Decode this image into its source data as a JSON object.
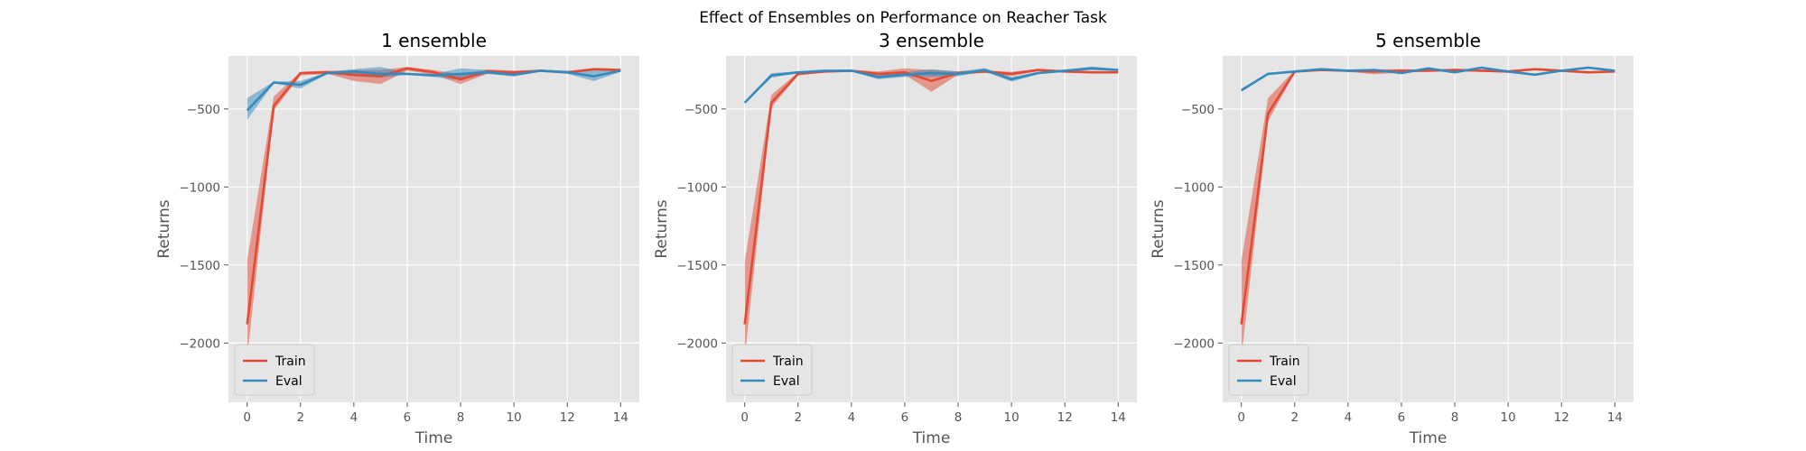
{
  "chart_data": {
    "type": "line",
    "title": "Effect of Ensembles on Performance on Reacher Task",
    "style": {
      "background": "#E5E5E5",
      "grid": true,
      "grid_color": "#FFFFFF",
      "legend_loc": "lower left"
    },
    "colors": {
      "Train": "#E24A33",
      "Eval": "#348ABD"
    },
    "panels": [
      {
        "title": "1 ensemble",
        "xlabel": "Time",
        "ylabel": "Returns",
        "xlim": [
          -0.7,
          14.7
        ],
        "ylim": [
          -2380,
          -160
        ],
        "xticks": [
          0,
          2,
          4,
          6,
          8,
          10,
          12,
          14
        ],
        "yticks": [
          -500,
          -1000,
          -1500,
          -2000
        ],
        "x": [
          0,
          1,
          2,
          3,
          4,
          5,
          6,
          7,
          8,
          9,
          10,
          11,
          12,
          13,
          14
        ],
        "series": [
          {
            "name": "Train",
            "mean": [
              -1880,
              -480,
              -270,
              -265,
              -280,
              -290,
              -240,
              -265,
              -310,
              -260,
              -265,
              -255,
              -265,
              -245,
              -250
            ],
            "lower": [
              -2100,
              -510,
              -285,
              -275,
              -320,
              -340,
              -255,
              -280,
              -340,
              -275,
              -275,
              -262,
              -272,
              -255,
              -258
            ],
            "upper": [
              -1470,
              -420,
              -262,
              -255,
              -250,
              -250,
              -230,
              -250,
              -280,
              -245,
              -255,
              -248,
              -258,
              -238,
              -242
            ]
          },
          {
            "name": "Eval",
            "mean": [
              -510,
              -330,
              -345,
              -270,
              -260,
              -275,
              -275,
              -285,
              -275,
              -265,
              -280,
              -255,
              -265,
              -290,
              -255
            ],
            "lower": [
              -570,
              -335,
              -370,
              -275,
              -290,
              -300,
              -280,
              -295,
              -315,
              -275,
              -292,
              -262,
              -275,
              -320,
              -262
            ],
            "upper": [
              -430,
              -325,
              -320,
              -265,
              -245,
              -230,
              -270,
              -275,
              -240,
              -250,
              -265,
              -248,
              -255,
              -255,
              -248
            ]
          }
        ]
      },
      {
        "title": "3 ensemble",
        "xlabel": "Time",
        "ylabel": "Returns",
        "xlim": [
          -0.7,
          14.7
        ],
        "ylim": [
          -2380,
          -160
        ],
        "xticks": [
          0,
          2,
          4,
          6,
          8,
          10,
          12,
          14
        ],
        "yticks": [
          -500,
          -1000,
          -1500,
          -2000
        ],
        "x": [
          0,
          1,
          2,
          3,
          4,
          5,
          6,
          7,
          8,
          9,
          10,
          11,
          12,
          13,
          14
        ],
        "series": [
          {
            "name": "Train",
            "mean": [
              -1880,
              -460,
              -275,
              -260,
              -255,
              -275,
              -265,
              -320,
              -270,
              -260,
              -275,
              -250,
              -260,
              -265,
              -265
            ],
            "lower": [
              -2100,
              -490,
              -285,
              -266,
              -262,
              -285,
              -280,
              -390,
              -280,
              -268,
              -290,
              -258,
              -266,
              -272,
              -272
            ],
            "upper": [
              -1480,
              -410,
              -265,
              -254,
              -248,
              -260,
              -240,
              -250,
              -258,
              -252,
              -262,
              -242,
              -254,
              -258,
              -258
            ]
          },
          {
            "name": "Eval",
            "mean": [
              -460,
              -285,
              -265,
              -255,
              -255,
              -295,
              -280,
              -270,
              -275,
              -250,
              -310,
              -270,
              -255,
              -240,
              -250
            ],
            "lower": [
              -462,
              -300,
              -270,
              -260,
              -260,
              -310,
              -295,
              -295,
              -290,
              -260,
              -325,
              -278,
              -262,
              -250,
              -256
            ],
            "upper": [
              -458,
              -270,
              -260,
              -250,
              -250,
              -280,
              -265,
              -245,
              -260,
              -238,
              -295,
              -262,
              -248,
              -228,
              -244
            ]
          }
        ]
      },
      {
        "title": "5 ensemble",
        "xlabel": "Time",
        "ylabel": "Returns",
        "xlim": [
          -0.7,
          14.7
        ],
        "ylim": [
          -2380,
          -160
        ],
        "xticks": [
          0,
          2,
          4,
          6,
          8,
          10,
          12,
          14
        ],
        "yticks": [
          -500,
          -1000,
          -1500,
          -2000
        ],
        "x": [
          0,
          1,
          2,
          3,
          4,
          5,
          6,
          7,
          8,
          9,
          10,
          11,
          12,
          13,
          14
        ],
        "series": [
          {
            "name": "Train",
            "mean": [
              -1880,
              -530,
              -260,
              -250,
              -255,
              -260,
              -255,
              -255,
              -250,
              -255,
              -260,
              -245,
              -255,
              -265,
              -260
            ],
            "lower": [
              -2100,
              -580,
              -268,
              -256,
              -262,
              -278,
              -265,
              -262,
              -258,
              -262,
              -268,
              -252,
              -262,
              -272,
              -266
            ],
            "upper": [
              -1470,
              -430,
              -252,
              -244,
              -248,
              -245,
              -245,
              -248,
              -242,
              -248,
              -252,
              -238,
              -248,
              -258,
              -254
            ]
          },
          {
            "name": "Eval",
            "mean": [
              -380,
              -275,
              -260,
              -245,
              -255,
              -250,
              -270,
              -240,
              -265,
              -235,
              -260,
              -280,
              -255,
              -235,
              -255
            ],
            "lower": [
              -390,
              -282,
              -266,
              -250,
              -260,
              -256,
              -276,
              -246,
              -270,
              -240,
              -266,
              -286,
              -260,
              -240,
              -260
            ],
            "upper": [
              -370,
              -268,
              -254,
              -240,
              -250,
              -244,
              -264,
              -234,
              -260,
              -230,
              -254,
              -274,
              -250,
              -230,
              -250
            ]
          }
        ]
      }
    ]
  }
}
